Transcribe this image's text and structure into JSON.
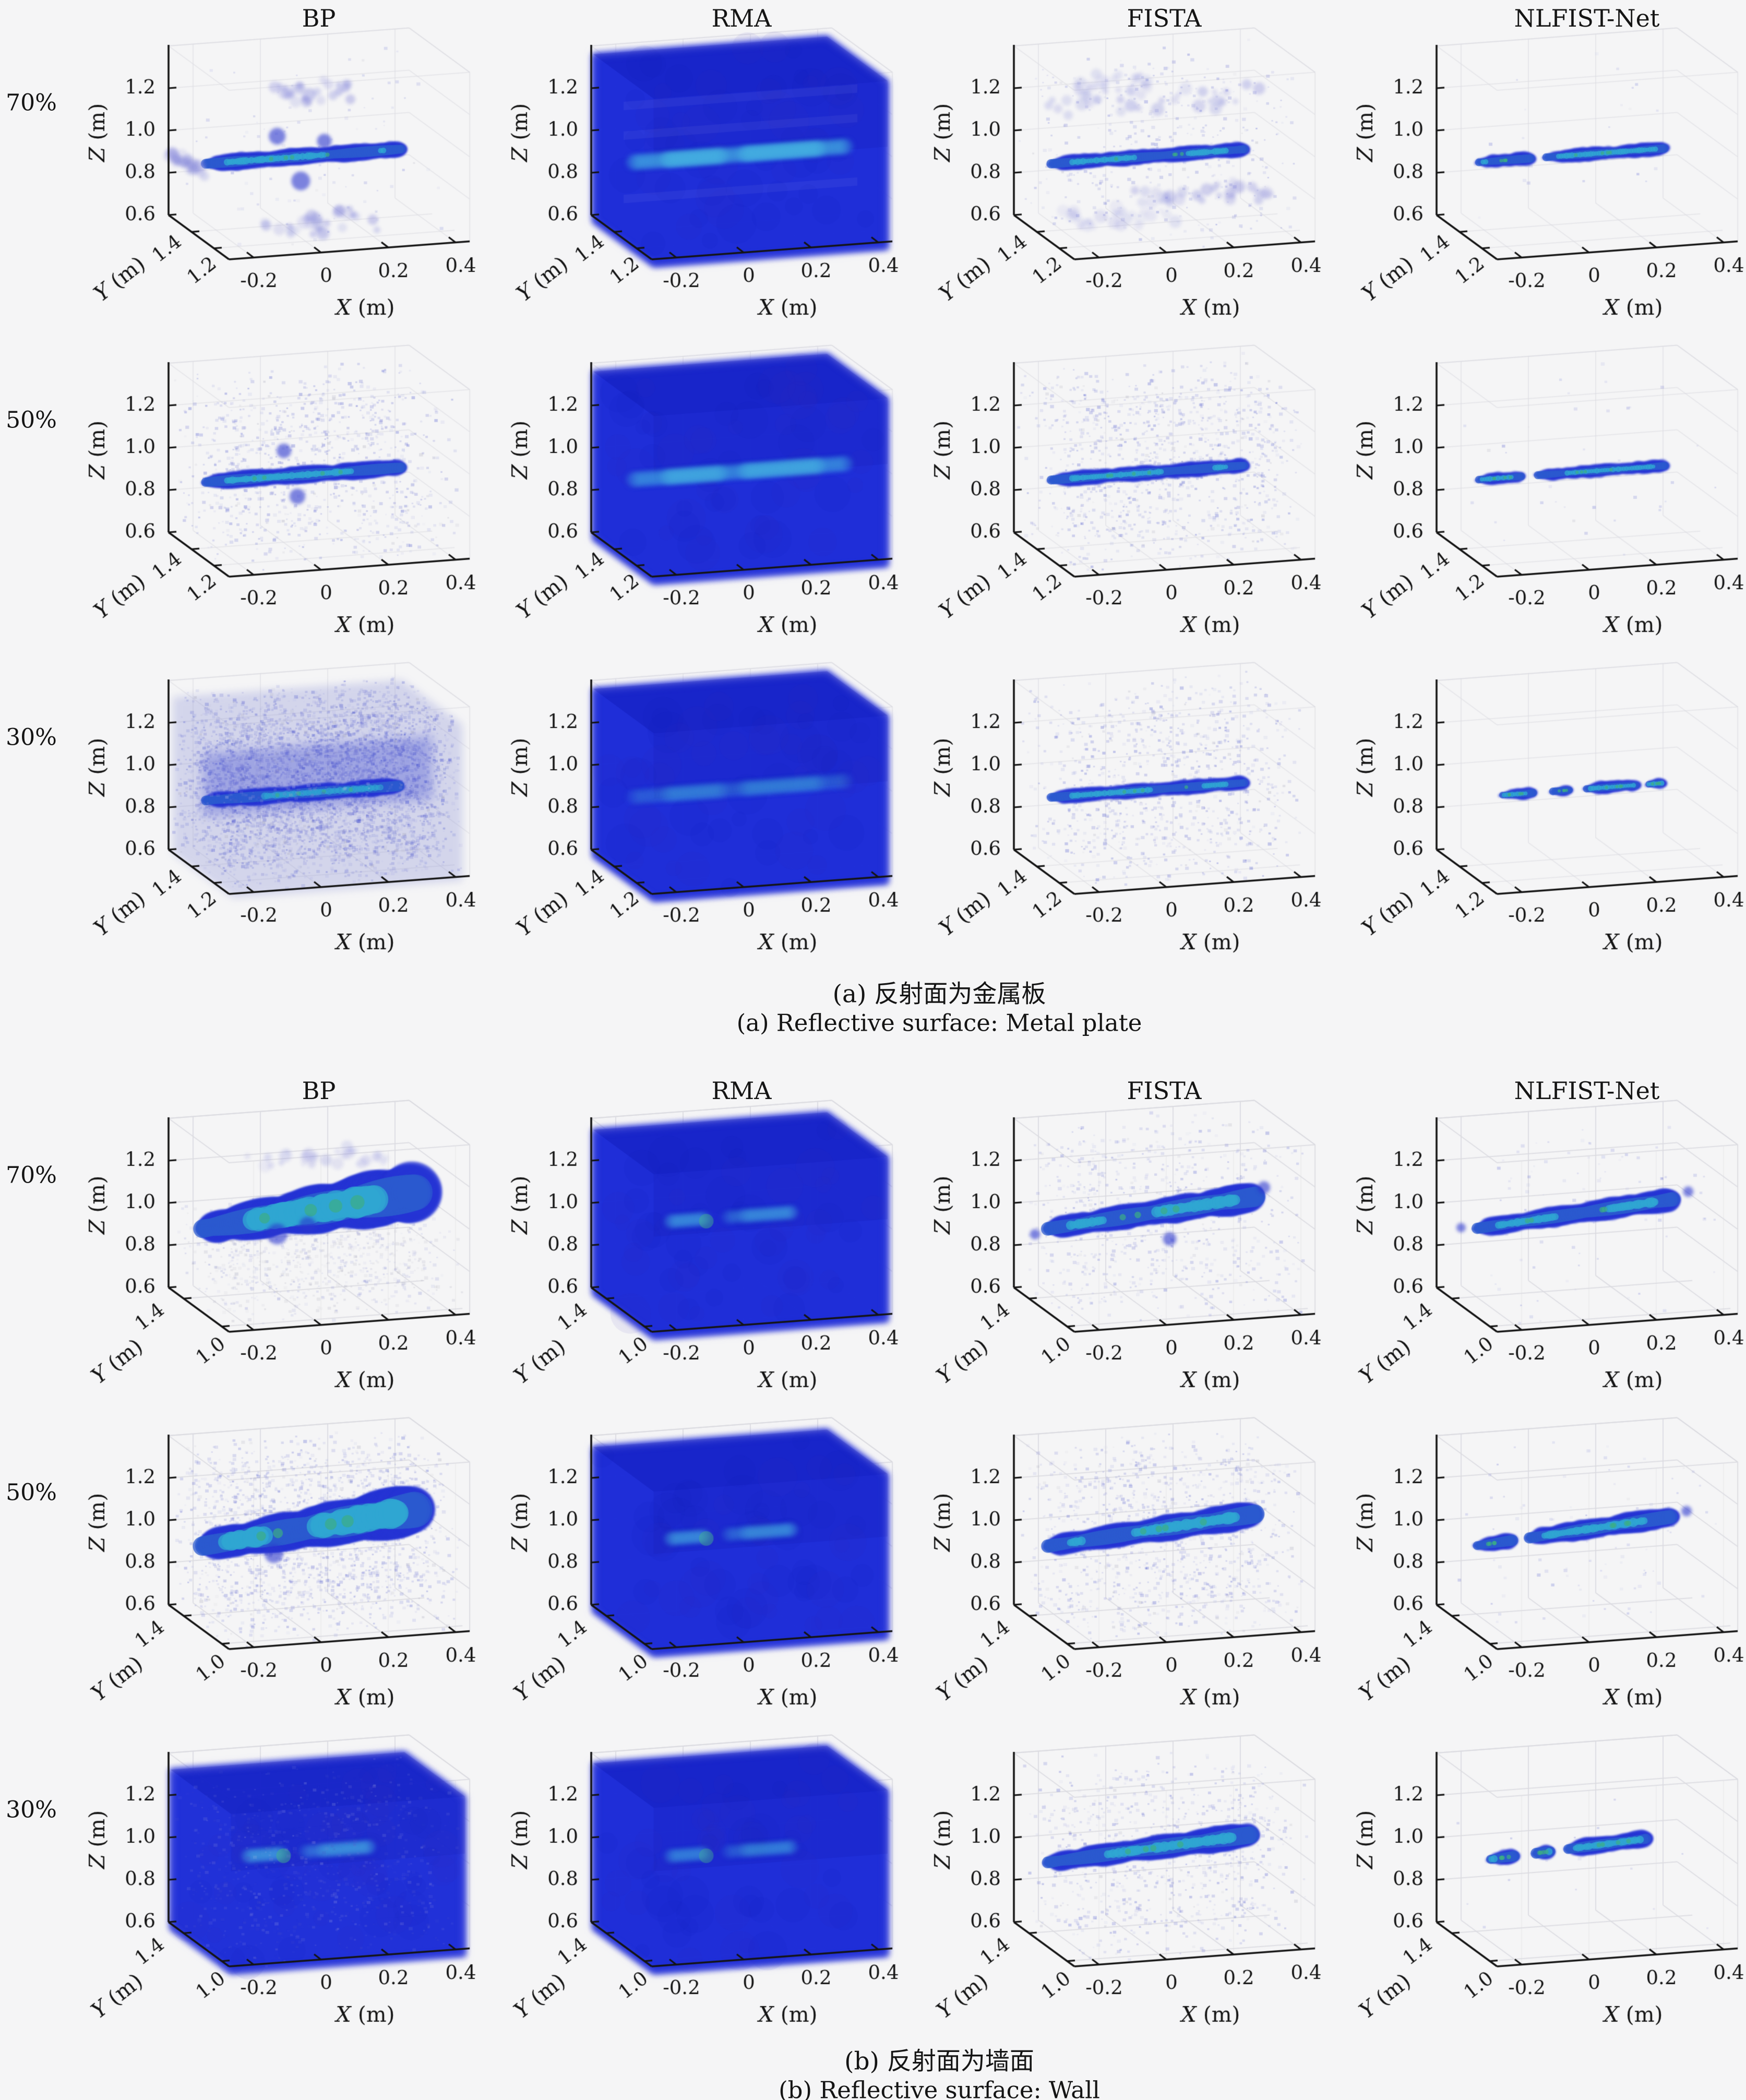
{
  "chart_data": {
    "type": "scatter",
    "description": "4x3 grid of 3D voxel reconstruction plots per section, comparing methods at sampling rates",
    "columns": [
      "BP",
      "RMA",
      "FISTA",
      "NLFIST-Net"
    ],
    "row_labels": [
      "70%",
      "50%",
      "30%"
    ],
    "axes": {
      "x": {
        "label_letter": "X",
        "label_unit": " (m)",
        "ticks": [
          "-0.2",
          "0",
          "0.2",
          "0.4"
        ],
        "tick_values": [
          -0.2,
          0,
          0.2,
          0.4
        ]
      },
      "z": {
        "label_letter": "Z",
        "label_unit": " (m)",
        "ticks": [
          "1.2",
          "1.0",
          "0.8",
          "0.6"
        ],
        "tick_values": [
          1.2,
          1.0,
          0.8,
          0.6
        ]
      },
      "y": {
        "label_letter": "Y",
        "label_unit": " (m)"
      }
    },
    "sections": [
      {
        "id": "a",
        "caption_zh": "(a) 反射面为金属板",
        "caption_en": "(a) Reflective surface: Metal plate",
        "y_ticks": [
          {
            "label": "1.4",
            "t": 0.62
          },
          {
            "label": "1.2",
            "t": 0.25
          }
        ],
        "cells": [
          [
            {
              "kind": "streak",
              "z": 0.945,
              "x0": -0.26,
              "x1": 0.335,
              "th": 0.068,
              "core": 1,
              "bumps": [
                [
                  -0.04,
                  1.05,
                  16
                ],
                [
                  0.03,
                  0.83,
                  18
                ],
                [
                  0.1,
                  1.01,
                  14
                ]
              ],
              "lavbands": [
                [
                  1.245,
                  -0.03,
                  0.19,
                  0.5
                ],
                [
                  0.625,
                  -0.08,
                  0.27,
                  0.5
                ],
                [
                  0.95,
                  -0.33,
                  -0.29,
                  0.5
                ]
              ],
              "noise": 0.05,
              "na": 0.3
            },
            {
              "kind": "volume",
              "streakline": 1,
              "stripes": 1
            },
            {
              "kind": "streak",
              "z": 0.945,
              "x0": -0.26,
              "x1": 0.33,
              "th": 0.06,
              "core": 1,
              "lavbands": [
                [
                  1.2,
                  -0.25,
                  0.4,
                  0.45
                ],
                [
                  1.29,
                  -0.18,
                  0.05,
                  0.3
                ],
                [
                  0.75,
                  0.02,
                  0.4,
                  0.45
                ],
                [
                  0.68,
                  -0.2,
                  0.1,
                  0.25
                ]
              ],
              "noise": 0.22,
              "na": 0.38
            },
            {
              "kind": "streak",
              "z": 0.95,
              "x0": -0.245,
              "x1": 0.325,
              "th": 0.055,
              "core": 1,
              "gaps": [
                [
                  -0.075,
                  -0.045
                ]
              ],
              "noise": 0.012,
              "na": 0.35
            }
          ],
          [
            {
              "kind": "streak",
              "z": 0.94,
              "x0": -0.26,
              "x1": 0.335,
              "th": 0.07,
              "core": 1,
              "bumps": [
                [
                  -0.02,
                  1.06,
                  14
                ],
                [
                  0.02,
                  0.84,
                  15
                ]
              ],
              "noise": 0.55,
              "na": 0.4,
              "nz": [
                0.6,
                1.36
              ]
            },
            {
              "kind": "volume",
              "streakline": 0.8
            },
            {
              "kind": "streak",
              "z": 0.95,
              "x0": -0.26,
              "x1": 0.33,
              "th": 0.06,
              "core": 1,
              "noise": 0.6,
              "na": 0.38
            },
            {
              "kind": "streak",
              "z": 0.95,
              "x0": -0.245,
              "x1": 0.325,
              "th": 0.05,
              "core": 1,
              "gaps": [
                [
                  -0.105,
                  -0.07
                ]
              ],
              "noise": 0.02,
              "na": 0.35
            }
          ],
          [
            {
              "kind": "streak",
              "z": 0.935,
              "x0": -0.26,
              "x1": 0.33,
              "th": 0.068,
              "core": 0.8,
              "noise": 1.9,
              "na": 0.42,
              "nz": [
                0.6,
                1.35
              ],
              "midband": 1,
              "noiseOver": 0.6
            },
            {
              "kind": "volume",
              "streakline": 0.35
            },
            {
              "kind": "streak",
              "z": 0.95,
              "x0": -0.26,
              "x1": 0.33,
              "th": 0.058,
              "core": 1,
              "noise": 0.5,
              "na": 0.4
            },
            {
              "kind": "streak",
              "z": 0.95,
              "x0": -0.245,
              "x1": 0.315,
              "th": 0.05,
              "core": 1,
              "segments": [
                [
                  -0.175,
                  -0.07
                ],
                [
                  -0.025,
                  0.04
                ],
                [
                  0.075,
                  0.24
                ],
                [
                  0.26,
                  0.315
                ]
              ],
              "noise": 0
            }
          ]
        ]
      },
      {
        "id": "b",
        "caption_zh": "(b) 反射面为墙面",
        "caption_en": "(b) Reflective surface: Wall",
        "y_ticks": [
          {
            "label": "1.4",
            "t": 0.75
          },
          {
            "label": "1.0",
            "t": 0.12
          }
        ],
        "cells": [
          [
            {
              "kind": "streak",
              "z": 1.03,
              "tilt": 0.1,
              "x0": -0.27,
              "x1": 0.38,
              "th": 0.13,
              "grow": 2.0,
              "core": 1,
              "coreWide": 1,
              "bumps": [
                [
                  -0.04,
                  0.93,
                  20
                ],
                [
                  0.05,
                  0.96,
                  16
                ]
              ],
              "noise": 0.5,
              "na": 0.3,
              "nz": [
                0.6,
                1.02
              ],
              "gray": 1,
              "lavbands": [
                [
                  1.28,
                  -0.12,
                  0.3,
                  0.35
                ]
              ]
            },
            {
              "kind": "volume",
              "zt": 1.345,
              "streakline": 0.5,
              "bstyle": 1
            },
            {
              "kind": "streak",
              "z": 1.02,
              "tilt": 0.08,
              "x0": -0.27,
              "x1": 0.36,
              "th": 0.085,
              "grow": 1.5,
              "core": 1,
              "noise": 0.4,
              "na": 0.34,
              "nz": [
                0.6,
                1.38
              ],
              "bumps": [
                [
                  0.38,
                  1.1,
                  12
                ],
                [
                  -0.3,
                  0.96,
                  10
                ],
                [
                  0.1,
                  0.89,
                  13
                ]
              ]
            },
            {
              "kind": "streak",
              "z": 1.015,
              "tilt": 0.07,
              "x0": -0.25,
              "x1": 0.345,
              "th": 0.07,
              "grow": 1.4,
              "core": 1,
              "noise": 0.05,
              "na": 0.3,
              "bumps": [
                [
                  0.385,
                  1.08,
                  10
                ],
                [
                  -0.29,
                  0.99,
                  9
                ]
              ]
            }
          ],
          [
            {
              "kind": "streak",
              "z": 1.03,
              "tilt": 0.1,
              "x0": -0.27,
              "x1": 0.38,
              "th": 0.12,
              "grow": 1.9,
              "core": 1,
              "coreWide": 1,
              "noise": 1.0,
              "na": 0.36,
              "nz": [
                0.6,
                1.38
              ],
              "bumps": [
                [
                  -0.05,
                  0.92,
                  18
                ]
              ]
            },
            {
              "kind": "volume",
              "zt": 1.345,
              "streakline": 0.5,
              "bstyle": 1
            },
            {
              "kind": "streak",
              "z": 1.02,
              "tilt": 0.08,
              "x0": -0.27,
              "x1": 0.36,
              "th": 0.085,
              "grow": 1.4,
              "core": 1,
              "noise": 0.6,
              "na": 0.36
            },
            {
              "kind": "streak",
              "z": 1.015,
              "tilt": 0.07,
              "x0": -0.25,
              "x1": 0.345,
              "th": 0.065,
              "grow": 1.4,
              "core": 1,
              "gaps": [
                [
                  -0.13,
                  -0.095
                ]
              ],
              "noise": 0.05,
              "na": 0.3,
              "bumps": [
                [
                  0.38,
                  1.07,
                  10
                ]
              ]
            }
          ],
          [
            {
              "kind": "volume",
              "zt": 1.32,
              "soft": 1,
              "streakline": 0.55,
              "bstyle": 1
            },
            {
              "kind": "volume",
              "zt": 1.35,
              "streakline": 0.4,
              "bstyle": 1
            },
            {
              "kind": "streak",
              "z": 1.015,
              "tilt": 0.06,
              "x0": -0.27,
              "x1": 0.35,
              "th": 0.08,
              "grow": 1.4,
              "core": 1,
              "noise": 0.45,
              "na": 0.36
            },
            {
              "kind": "streak",
              "z": 1.015,
              "tilt": 0.05,
              "x0": -0.24,
              "x1": 0.31,
              "th": 0.07,
              "core": 1,
              "segments": [
                [
                  -0.21,
                  -0.125
                ],
                [
                  -0.075,
                  -0.02
                ],
                [
                  0.02,
                  0.27
                ]
              ],
              "noise": 0.01
            }
          ]
        ]
      }
    ]
  }
}
